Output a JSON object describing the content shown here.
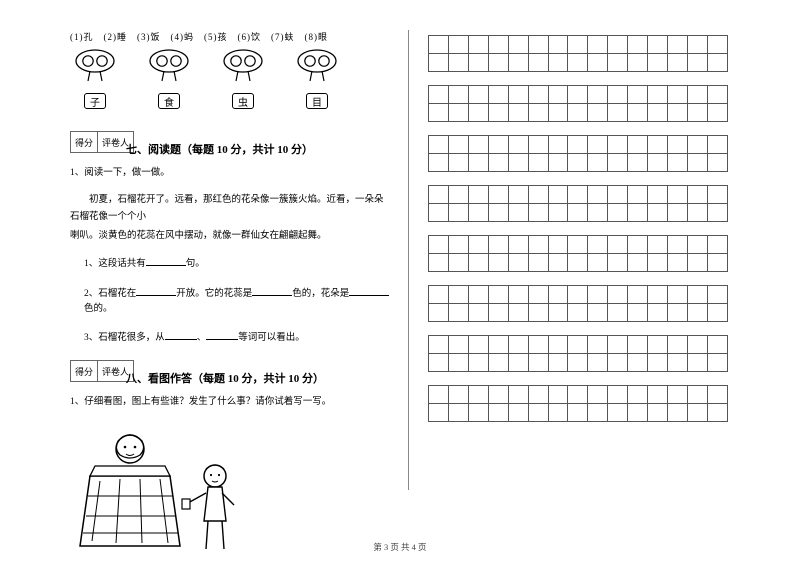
{
  "exercise_top": {
    "options": "(1)孔　(2)睡　(3)饭　(4)蚂　(5)孩　(6)饮　(7)蚨　(8)眼",
    "mushroom_labels": [
      "子",
      "食",
      "虫",
      "目"
    ]
  },
  "score_labels": {
    "score": "得分",
    "reviewer": "评卷人"
  },
  "section7": {
    "title": "七、阅读题（每题 10 分，共计 10 分）",
    "q_lead": "1、阅读一下，做一做。",
    "passage1": "初夏，石榴花开了。远看，那红色的花朵像一簇簇火焰。近看，一朵朵石榴花像一个个小",
    "passage2": "喇叭。淡黄色的花蕊在风中摆动，就像一群仙女在翩翩起舞。",
    "sub1a": "1、这段话共有",
    "sub1b": "句。",
    "sub2a": "2、石榴花在",
    "sub2b": "开放。它的花蕊是",
    "sub2c": "色的，花朵是",
    "sub2d": "色的。",
    "sub3a": "3、石榴花很多，从",
    "sub3b": "、",
    "sub3c": "等词可以看出。"
  },
  "section8": {
    "title": "八、看图作答（每题 10 分，共计 10 分）",
    "q1": "1、仔细看图，图上有些谁？发生了什么事？请你试着写一写。"
  },
  "grid": {
    "blocks": 8,
    "rows_per_block": 2,
    "cols": 15
  },
  "footer": "第 3 页 共 4 页",
  "colors": {
    "line": "#555555",
    "text": "#000000",
    "divider": "#888888"
  }
}
